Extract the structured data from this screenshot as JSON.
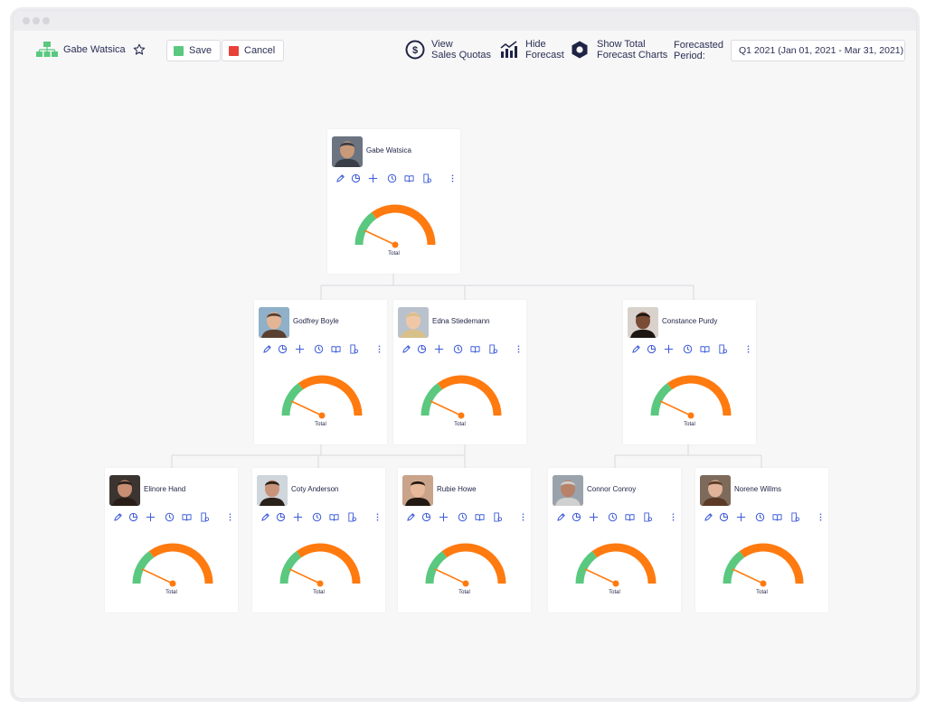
{
  "toolbar": {
    "user_name": "Gabe Watsica",
    "save_label": "Save",
    "cancel_label": "Cancel",
    "view_quotas": [
      "View",
      "Sales Quotas"
    ],
    "hide_forecast": [
      "Hide",
      "Forecast"
    ],
    "show_total": [
      "Show Total",
      "Forecast Charts"
    ],
    "forecast_period_label": [
      "Forecasted",
      "Period:"
    ],
    "forecast_period_value": "Q1 2021 (Jan 01, 2021 - Mar 31, 2021)"
  },
  "colors": {
    "accent_green": "#5ac87f",
    "accent_orange": "#ff7a0f",
    "save_green": "#5ac87f",
    "cancel_red": "#e8413a",
    "icon_blue": "#3d5bd9"
  },
  "gauge_label": "Total",
  "people": [
    {
      "name": "Gabe Watsica",
      "forecast_fraction": 0.3
    },
    {
      "name": "Godfrey Boyle",
      "forecast_fraction": 0.3
    },
    {
      "name": "Edna Stiedemann",
      "forecast_fraction": 0.3
    },
    {
      "name": "Constance Purdy",
      "forecast_fraction": 0.3
    },
    {
      "name": "Elinore Hand",
      "forecast_fraction": 0.3
    },
    {
      "name": "Coty Anderson",
      "forecast_fraction": 0.3
    },
    {
      "name": "Rubie Howe",
      "forecast_fraction": 0.3
    },
    {
      "name": "Connor Conroy",
      "forecast_fraction": 0.3
    },
    {
      "name": "Norene Willms",
      "forecast_fraction": 0.3
    }
  ],
  "card_actions": [
    "edit-icon",
    "pie-chart-icon",
    "add-icon",
    "clock-icon",
    "book-icon",
    "report-icon",
    "more-icon"
  ]
}
